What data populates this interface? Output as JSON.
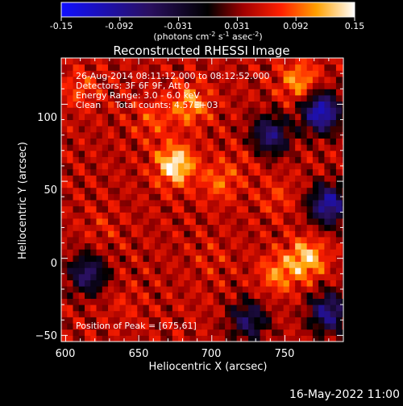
{
  "colorbar": {
    "ticks": [
      "-0.15",
      "-0.092",
      "-0.031",
      "0.031",
      "0.092",
      "0.15"
    ],
    "units_label": "(photons cm",
    "units_exp1": "-2",
    "units_mid": " s",
    "units_exp2": "-1",
    "units_tail": " asec",
    "units_exp3": "-2",
    "units_close": ")"
  },
  "footer": {
    "date": "16-May-2022 11:00"
  },
  "chart_data": {
    "type": "heatmap",
    "title": "Reconstructed RHESSI Image",
    "xlabel": "Heliocentric X (arcsec)",
    "ylabel": "Heliocentric Y (arcsec)",
    "xlim": [
      597,
      790
    ],
    "ylim": [
      -54,
      130
    ],
    "xticks": [
      600,
      650,
      700,
      750
    ],
    "yticks": [
      -50,
      0,
      50,
      100
    ],
    "xtick_labels": [
      "600",
      "650",
      "700",
      "750"
    ],
    "ytick_labels": [
      "−50",
      "0",
      "50",
      "100"
    ],
    "color_scale": {
      "min": -0.15,
      "max": 0.15,
      "colormap": "dark-blue to black to red to yellow to white"
    },
    "annotations": [
      "26-Aug-2014 08:11:12.000 to 08:12:52.000",
      "Detectors: 3F 6F 9F, Att 0",
      "Energy Range: 3.0 - 6.0 keV",
      "Clean     Total counts: 4.57E+03"
    ],
    "peak_label": "Position of Peak = [675,61]",
    "peak": {
      "x": 675,
      "y": 61
    },
    "hotspots": [
      {
        "x": 675,
        "y": 61,
        "value": 0.15
      },
      {
        "x": 685,
        "y": 100,
        "value": 0.11
      },
      {
        "x": 660,
        "y": 90,
        "value": 0.08
      },
      {
        "x": 760,
        "y": 115,
        "value": 0.11
      },
      {
        "x": 765,
        "y": 0,
        "value": 0.13
      },
      {
        "x": 745,
        "y": -10,
        "value": 0.1
      },
      {
        "x": 705,
        "y": 50,
        "value": 0.09
      },
      {
        "x": 725,
        "y": 65,
        "value": 0.06
      },
      {
        "x": 610,
        "y": 110,
        "value": 0.08
      },
      {
        "x": 625,
        "y": 20,
        "value": 0.06
      },
      {
        "x": 700,
        "y": 0,
        "value": 0.06
      },
      {
        "x": 640,
        "y": -30,
        "value": 0.06
      },
      {
        "x": 745,
        "y": 40,
        "value": 0.07
      },
      {
        "x": 690,
        "y": -30,
        "value": 0.05
      }
    ],
    "coldspots": [
      {
        "x": 775,
        "y": 95,
        "value": -0.12
      },
      {
        "x": 780,
        "y": 35,
        "value": -0.1
      },
      {
        "x": 740,
        "y": 80,
        "value": -0.07
      },
      {
        "x": 615,
        "y": -10,
        "value": -0.06
      },
      {
        "x": 725,
        "y": -40,
        "value": -0.05
      },
      {
        "x": 780,
        "y": -35,
        "value": -0.08
      }
    ]
  }
}
